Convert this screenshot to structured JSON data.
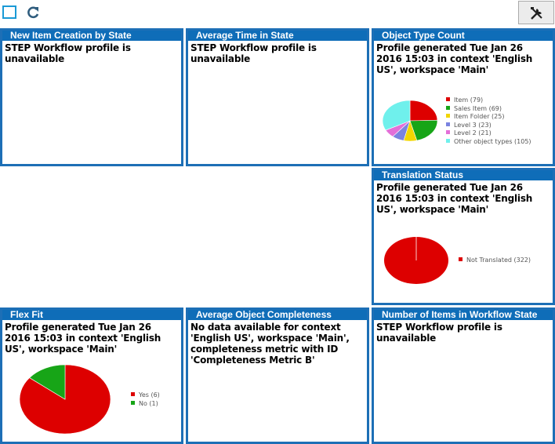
{
  "toolbar": {
    "select_icon": "square-outline-icon",
    "refresh_icon": "refresh-icon",
    "tools_icon": "tools-icon"
  },
  "panels": [
    {
      "title": "New Item Creation by State",
      "text": "STEP Workflow profile is unavailable"
    },
    {
      "title": "Average Time in  State",
      "text": "STEP Workflow profile is unavailable"
    },
    {
      "title": "Object Type Count",
      "text": "Profile generated Tue Jan 26 2016 15:03 in context 'English US', workspace 'Main'"
    },
    {
      "title": "Translation Status",
      "text": "Profile generated Tue Jan 26 2016 15:03 in context 'English US', workspace 'Main'"
    },
    {
      "title": "Flex Fit",
      "text": "Profile generated Tue Jan 26 2016 15:03 in context 'English US', workspace 'Main'"
    },
    {
      "title": "Average Object Completeness",
      "text": "No data available for context 'English US', workspace 'Main', completeness metric with ID 'Completeness Metric B'"
    },
    {
      "title": "Number of Items in Workflow State",
      "text": "STEP Workflow profile is unavailable"
    }
  ],
  "chart_data": [
    {
      "type": "pie",
      "labels": [
        "Item (79)",
        "Sales Item (69)",
        "Item Folder (25)",
        "Level 3 (23)",
        "Level 2 (21)",
        "Other object types (105)"
      ],
      "values": [
        79,
        69,
        25,
        23,
        21,
        105
      ],
      "colors": [
        "#dd0000",
        "#17a517",
        "#f2d600",
        "#7a83e0",
        "#e36fd8",
        "#6ff0ec"
      ]
    },
    {
      "type": "pie",
      "labels": [
        "Not Translated (322)"
      ],
      "values": [
        322
      ],
      "colors": [
        "#dd0000"
      ]
    },
    {
      "type": "pie",
      "labels": [
        "Yes (6)",
        "No (1)"
      ],
      "values": [
        6,
        1
      ],
      "colors": [
        "#dd0000",
        "#17a517"
      ]
    }
  ]
}
